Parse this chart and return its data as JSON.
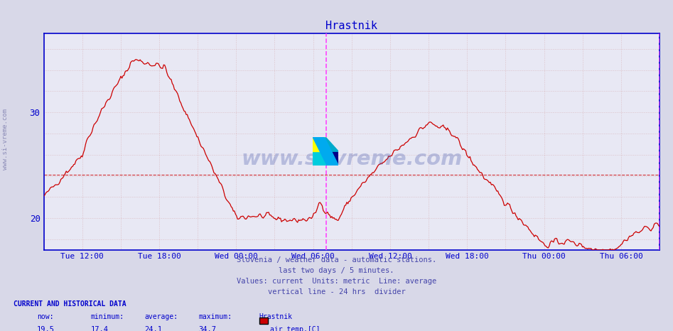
{
  "title": "Hrastnik",
  "title_color": "#0000cc",
  "bg_color": "#d8d8e8",
  "plot_bg_color": "#e8e8f4",
  "grid_color_major": "#cc4444",
  "grid_color_minor": "#ddaaaa",
  "line_color": "#cc0000",
  "avg_line_color": "#cc0000",
  "avg_value": 24.1,
  "y_min": 17.0,
  "y_max": 37.5,
  "y_ticks": [
    20,
    30
  ],
  "x_tick_labels": [
    "Tue 12:00",
    "Tue 18:00",
    "Wed 00:00",
    "Wed 06:00",
    "Wed 12:00",
    "Wed 18:00",
    "Thu 00:00",
    "Thu 06:00"
  ],
  "vertical_line_color": "#ff44ff",
  "footer_line1": "Slovenia / weather data - automatic stations.",
  "footer_line2": "last two days / 5 minutes.",
  "footer_line3": "Values: current  Units: metric  Line: average",
  "footer_line4": "vertical line - 24 hrs  divider",
  "footer_color": "#4444aa",
  "label_current": "CURRENT AND HISTORICAL DATA",
  "label_now": "now:",
  "label_min": "minimum:",
  "label_avg": "average:",
  "label_max": "maximum:",
  "label_station": "Hrastnik",
  "val_now": "19.5",
  "val_min": "17.4",
  "val_avg": "24.1",
  "val_max": "34.7",
  "legend_label": "air temp.[C]",
  "legend_color": "#cc0000",
  "watermark": "www.si-vreme.com",
  "axis_color": "#0000cc",
  "tick_label_color": "#0000cc",
  "left_label": "www.si-vreme.com"
}
